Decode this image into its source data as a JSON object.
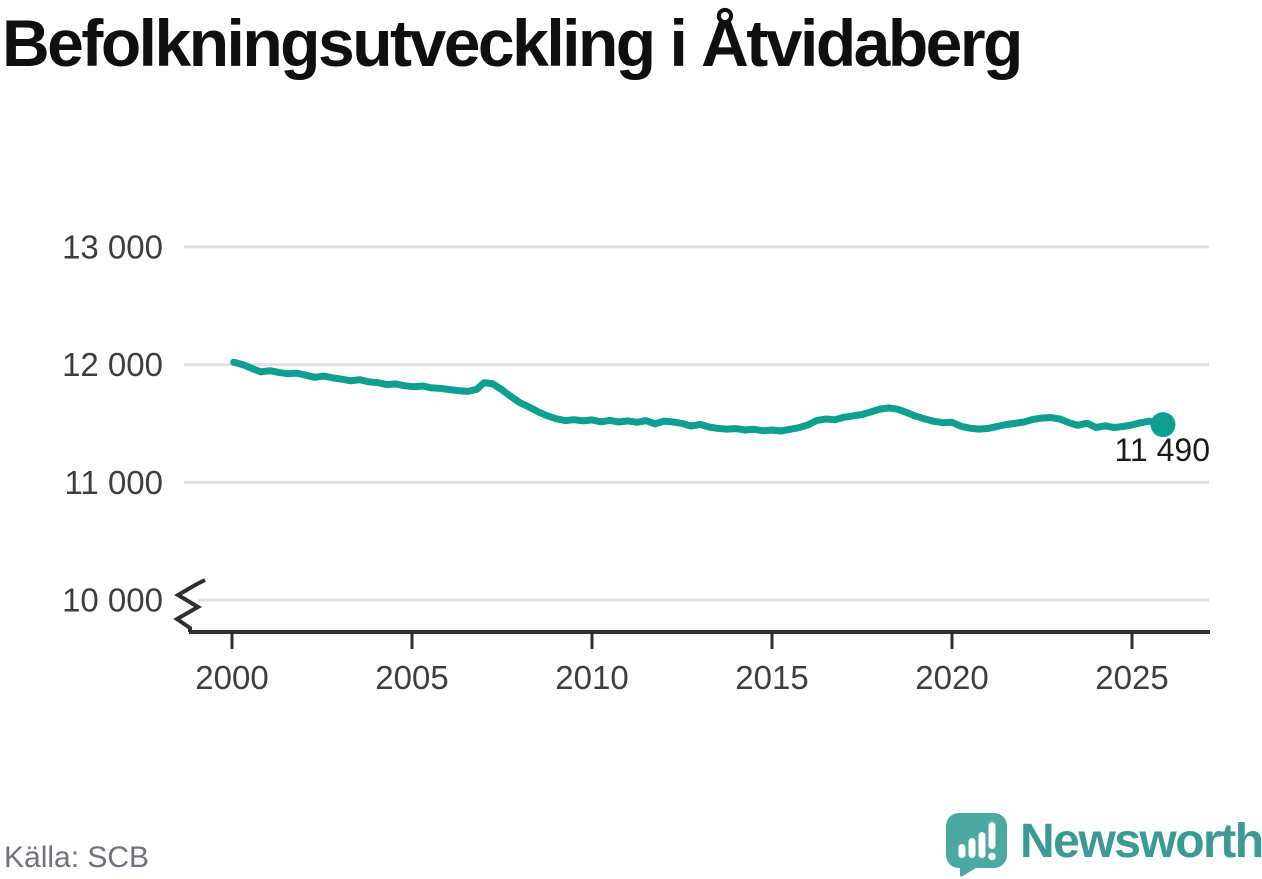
{
  "header": {
    "title": "Befolkningsutveckling i Åtvidaberg"
  },
  "footer": {
    "source": "Källa: SCB",
    "brand": "Newsworthy"
  },
  "colors": {
    "line": "#0da091",
    "grid": "#e0e0e0",
    "axis": "#2f2f2f",
    "tick_label": "#3e3e3e",
    "annotation": "#1a1a1a",
    "source_text": "#6f727b",
    "logo_mark": "#4ca9a2",
    "logo_word": "#3b9a93",
    "background": "#ffffff"
  },
  "chart_data": {
    "type": "line",
    "title": "Befolkningsutveckling i Åtvidaberg",
    "source": "Källa: SCB",
    "grid": true,
    "legend": "none",
    "x_axis": {
      "ticks": [
        2000,
        2005,
        2010,
        2015,
        2020,
        2025
      ],
      "range": [
        1998.7,
        2027.2
      ]
    },
    "y_axis": {
      "ticks": [
        10000,
        11000,
        12000,
        13000
      ],
      "tick_labels": [
        "10 000",
        "11 000",
        "12 000",
        "13 000"
      ],
      "range_displayed": [
        10000,
        13000
      ],
      "axis_break": true
    },
    "end_annotation": {
      "label": "11 490",
      "value": 11490
    },
    "series": [
      {
        "name": "Befolkningsutveckling i Åtvidaberg",
        "color": "#0da091",
        "points": [
          [
            2000.05,
            12020
          ],
          [
            2000.3,
            12000
          ],
          [
            2000.55,
            11968
          ],
          [
            2000.8,
            11938
          ],
          [
            2001.05,
            11948
          ],
          [
            2001.3,
            11934
          ],
          [
            2001.55,
            11922
          ],
          [
            2001.8,
            11928
          ],
          [
            2002.05,
            11910
          ],
          [
            2002.3,
            11892
          ],
          [
            2002.55,
            11902
          ],
          [
            2002.8,
            11888
          ],
          [
            2003.05,
            11876
          ],
          [
            2003.3,
            11862
          ],
          [
            2003.55,
            11872
          ],
          [
            2003.8,
            11854
          ],
          [
            2004.05,
            11846
          ],
          [
            2004.3,
            11830
          ],
          [
            2004.55,
            11836
          ],
          [
            2004.8,
            11820
          ],
          [
            2005.05,
            11812
          ],
          [
            2005.3,
            11818
          ],
          [
            2005.55,
            11802
          ],
          [
            2005.8,
            11798
          ],
          [
            2006.05,
            11788
          ],
          [
            2006.3,
            11778
          ],
          [
            2006.55,
            11772
          ],
          [
            2006.8,
            11790
          ],
          [
            2007.0,
            11846
          ],
          [
            2007.25,
            11836
          ],
          [
            2007.5,
            11786
          ],
          [
            2007.75,
            11728
          ],
          [
            2008.0,
            11676
          ],
          [
            2008.25,
            11640
          ],
          [
            2008.5,
            11600
          ],
          [
            2008.75,
            11566
          ],
          [
            2009.0,
            11540
          ],
          [
            2009.25,
            11524
          ],
          [
            2009.5,
            11532
          ],
          [
            2009.75,
            11522
          ],
          [
            2010.0,
            11530
          ],
          [
            2010.25,
            11514
          ],
          [
            2010.5,
            11526
          ],
          [
            2010.75,
            11512
          ],
          [
            2011.0,
            11522
          ],
          [
            2011.25,
            11510
          ],
          [
            2011.5,
            11524
          ],
          [
            2011.75,
            11496
          ],
          [
            2012.0,
            11520
          ],
          [
            2012.25,
            11512
          ],
          [
            2012.5,
            11500
          ],
          [
            2012.75,
            11478
          ],
          [
            2013.0,
            11492
          ],
          [
            2013.25,
            11470
          ],
          [
            2013.5,
            11458
          ],
          [
            2013.75,
            11452
          ],
          [
            2014.0,
            11456
          ],
          [
            2014.25,
            11444
          ],
          [
            2014.5,
            11450
          ],
          [
            2014.75,
            11438
          ],
          [
            2015.0,
            11444
          ],
          [
            2015.25,
            11436
          ],
          [
            2015.5,
            11450
          ],
          [
            2015.75,
            11464
          ],
          [
            2016.0,
            11488
          ],
          [
            2016.25,
            11526
          ],
          [
            2016.5,
            11538
          ],
          [
            2016.75,
            11532
          ],
          [
            2017.0,
            11552
          ],
          [
            2017.25,
            11564
          ],
          [
            2017.5,
            11576
          ],
          [
            2017.75,
            11598
          ],
          [
            2018.0,
            11622
          ],
          [
            2018.25,
            11632
          ],
          [
            2018.5,
            11620
          ],
          [
            2018.75,
            11592
          ],
          [
            2019.0,
            11562
          ],
          [
            2019.25,
            11538
          ],
          [
            2019.5,
            11518
          ],
          [
            2019.75,
            11506
          ],
          [
            2020.0,
            11510
          ],
          [
            2020.25,
            11476
          ],
          [
            2020.5,
            11460
          ],
          [
            2020.75,
            11452
          ],
          [
            2021.0,
            11458
          ],
          [
            2021.25,
            11474
          ],
          [
            2021.5,
            11490
          ],
          [
            2021.75,
            11500
          ],
          [
            2022.0,
            11512
          ],
          [
            2022.25,
            11534
          ],
          [
            2022.5,
            11546
          ],
          [
            2022.75,
            11550
          ],
          [
            2023.0,
            11538
          ],
          [
            2023.25,
            11506
          ],
          [
            2023.5,
            11484
          ],
          [
            2023.75,
            11502
          ],
          [
            2024.0,
            11466
          ],
          [
            2024.25,
            11480
          ],
          [
            2024.5,
            11466
          ],
          [
            2024.75,
            11474
          ],
          [
            2025.0,
            11488
          ],
          [
            2025.25,
            11506
          ],
          [
            2025.5,
            11520
          ],
          [
            2025.86,
            11490
          ]
        ]
      }
    ]
  }
}
